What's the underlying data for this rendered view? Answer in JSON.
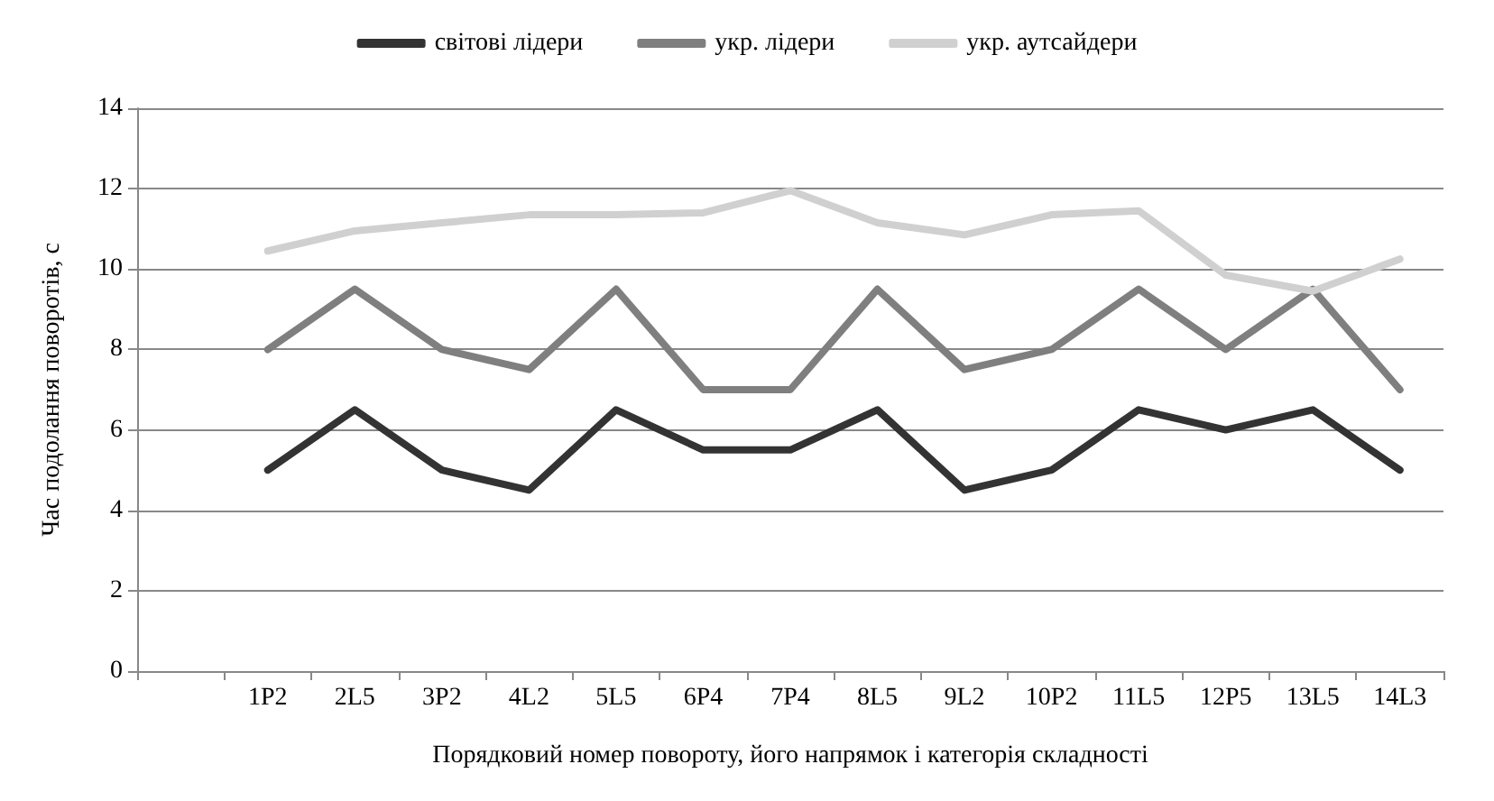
{
  "chart_data": {
    "type": "line",
    "xlabel": "Порядковий номер повороту, його напрямок і категорія складності",
    "ylabel": "Час подолання поворотів, с",
    "categories": [
      null,
      "1P2",
      "2L5",
      "3P2",
      "4L2",
      "5L5",
      "6P4",
      "7P4",
      "8L5",
      "9L2",
      "10P2",
      "11L5",
      "12P5",
      "13L5",
      "14L3"
    ],
    "series": [
      {
        "name": "світові лідери",
        "color": "#333333",
        "values": [
          null,
          5,
          6.5,
          5,
          4.5,
          6.5,
          5.5,
          5.5,
          6.5,
          4.5,
          5,
          6.5,
          6,
          6.5,
          5
        ]
      },
      {
        "name": "укр. лідери",
        "color": "#7f7f7f",
        "values": [
          null,
          8,
          9.5,
          8,
          7.5,
          9.5,
          7,
          7,
          9.5,
          7.5,
          8,
          9.5,
          8,
          9.5,
          7
        ]
      },
      {
        "name": "укр. аутсайдери",
        "color": "#d0d0d0",
        "values": [
          null,
          10.45,
          10.95,
          11.15,
          11.35,
          11.35,
          11.4,
          11.95,
          11.15,
          10.85,
          11.35,
          11.45,
          9.85,
          9.45,
          10.25
        ]
      }
    ],
    "ylim": [
      0,
      14
    ],
    "yticks": [
      0,
      2,
      4,
      6,
      8,
      10,
      12,
      14
    ],
    "grid": "y",
    "legend": "top",
    "marker": "none",
    "line_style": "solid"
  }
}
